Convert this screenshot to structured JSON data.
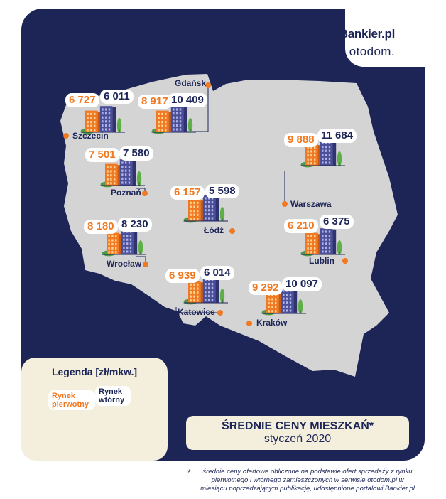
{
  "brand": {
    "name1": "Bankier.pl",
    "name2": "otodom."
  },
  "cities": [
    {
      "name": "Szczecin",
      "primary": "6 727",
      "secondary": "6 011"
    },
    {
      "name": "Gdańsk",
      "primary": "8 917",
      "secondary": "10 409"
    },
    {
      "name": "Poznań",
      "primary": "7 501",
      "secondary": "7 580"
    },
    {
      "name": "Warszawa",
      "primary": "9 888",
      "secondary": "11 684"
    },
    {
      "name": "Łódź",
      "primary": "6 157",
      "secondary": "5 598"
    },
    {
      "name": "Wrocław",
      "primary": "8 180",
      "secondary": "8 230"
    },
    {
      "name": "Lublin",
      "primary": "6 210",
      "secondary": "6 375"
    },
    {
      "name": "Katowice",
      "primary": "6 939",
      "secondary": "6 014"
    },
    {
      "name": "Kraków",
      "primary": "9 292",
      "secondary": "10 097"
    }
  ],
  "legend": {
    "title": "Legenda [zł/mkw.]",
    "primary_label": "Rynek pierwotny",
    "secondary_label": "Rynek wtórny"
  },
  "title": {
    "line1": "ŚREDNIE CENY MIESZKAŃ*",
    "line2": "styczeń 2020"
  },
  "footnote": {
    "marker": "*",
    "text": "średnie ceny ofertowe obliczone na podstawie ofert sprzedaży z rynku pierwotnego i wtórnego zamieszczonych w serwisie otodom.pl w miesiącu poprzedzającym publikację, udostępnione portalowi Bankier.pl"
  },
  "colors": {
    "background": "#1d2557",
    "map": "#d4d4d4",
    "primary": "#f07921",
    "secondary": "#4b4f97",
    "legend_bg": "#f4efdd"
  }
}
